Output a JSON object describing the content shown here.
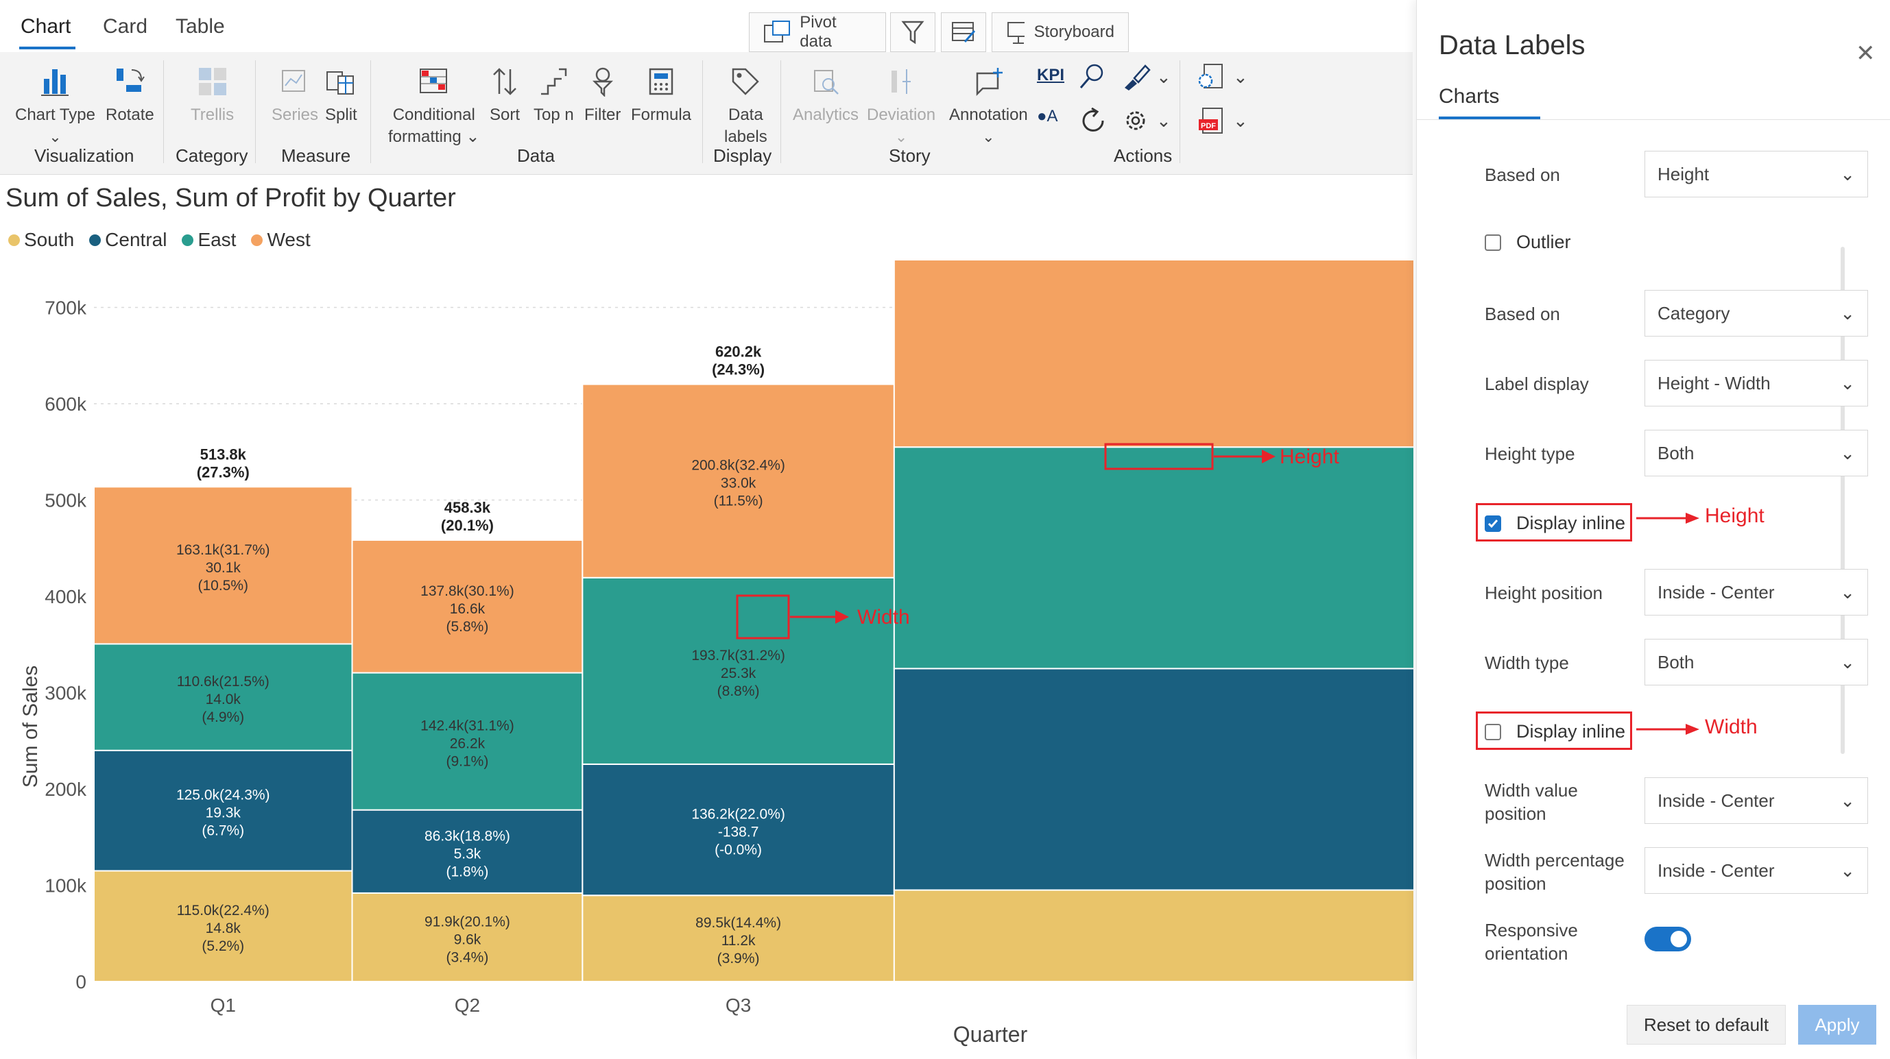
{
  "tabs": [
    {
      "label": "Chart"
    },
    {
      "label": "Card"
    },
    {
      "label": "Table"
    }
  ],
  "toolbar": {
    "pivot_label": "Pivot data",
    "storyboard_label": "Storyboard"
  },
  "ribbon": {
    "chart_type": "Chart Type",
    "rotate": "Rotate",
    "trellis": "Trellis",
    "series": "Series",
    "split": "Split",
    "conditional_formatting_1": "Conditional",
    "conditional_formatting_2": "formatting",
    "sort": "Sort",
    "top_n": "Top n",
    "filter": "Filter",
    "formula": "Formula",
    "data_labels_1": "Data",
    "data_labels_2": "labels",
    "analytics": "Analytics",
    "deviation": "Deviation",
    "annotation": "Annotation",
    "kpi": "KPI",
    "groups": {
      "visualization": "Visualization",
      "category": "Category",
      "measure": "Measure",
      "data": "Data",
      "display": "Display",
      "story": "Story",
      "actions": "Actions"
    }
  },
  "chart": {
    "title": "Sum of Sales, Sum of Profit by Quarter",
    "legend": [
      {
        "name": "South",
        "color": "#e9c46a"
      },
      {
        "name": "Central",
        "color": "#1a6080"
      },
      {
        "name": "East",
        "color": "#2a9d8f"
      },
      {
        "name": "West",
        "color": "#f4a261"
      }
    ],
    "annotations": {
      "height": "Height",
      "width": "Width"
    }
  },
  "chart_data": {
    "type": "bar",
    "title": "Sum of Sales, Sum of Profit by Quarter",
    "xlabel": "Quarter",
    "ylabel": "Sum of Sales",
    "ylim": [
      0,
      700000
    ],
    "yticks": [
      "0",
      "100k",
      "200k",
      "300k",
      "400k",
      "500k",
      "600k",
      "700k"
    ],
    "categories": [
      "Q1",
      "Q2",
      "Q3"
    ],
    "widths": [
      513.8,
      458.3,
      620.2
    ],
    "totals": [
      {
        "value": "513.8k",
        "pct": "(27.3%)"
      },
      {
        "value": "458.3k",
        "pct": "(20.1%)"
      },
      {
        "value": "620.2k",
        "pct": "(24.3%)"
      }
    ],
    "series": [
      {
        "name": "South",
        "color": "#e9c46a",
        "values": [
          115.0,
          91.9,
          89.5
        ],
        "labels": [
          [
            "115.0k(22.4%)",
            "14.8k",
            "(5.2%)"
          ],
          [
            "91.9k(20.1%)",
            "9.6k",
            "(3.4%)"
          ],
          [
            "89.5k(14.4%)",
            "11.2k",
            "(3.9%)"
          ]
        ]
      },
      {
        "name": "Central",
        "color": "#1a6080",
        "values": [
          125.0,
          86.3,
          136.2
        ],
        "labels": [
          [
            "125.0k(24.3%)",
            "19.3k",
            "(6.7%)"
          ],
          [
            "86.3k(18.8%)",
            "5.3k",
            "(1.8%)"
          ],
          [
            "136.2k(22.0%)",
            "-138.7",
            "(-0.0%)"
          ]
        ]
      },
      {
        "name": "East",
        "color": "#2a9d8f",
        "values": [
          110.6,
          142.4,
          193.7
        ],
        "labels": [
          [
            "110.6k(21.5%)",
            "14.0k",
            "(4.9%)"
          ],
          [
            "142.4k(31.1%)",
            "26.2k",
            "(9.1%)"
          ],
          [
            "193.7k(31.2%)",
            "25.3k",
            "(8.8%)"
          ]
        ]
      },
      {
        "name": "West",
        "color": "#f4a261",
        "values": [
          163.1,
          137.8,
          200.8
        ],
        "labels": [
          [
            "163.1k(31.7%)",
            "30.1k",
            "(10.5%)"
          ],
          [
            "137.8k(30.1%)",
            "16.6k",
            "(5.8%)"
          ],
          [
            "200.8k(32.4%)",
            "33.0k",
            "(11.5%)"
          ]
        ]
      }
    ],
    "partial_q4": {
      "values": [
        95,
        230,
        230,
        220
      ]
    }
  },
  "panel": {
    "title": "Data Labels",
    "tab": "Charts",
    "based_on_label": "Based on",
    "based_on_value": "Height",
    "outlier_label": "Outlier",
    "based_on2_label": "Based on",
    "based_on2_value": "Category",
    "label_display_label": "Label display",
    "label_display_value": "Height - Width",
    "height_type_label": "Height type",
    "height_type_value": "Both",
    "display_inline_1": "Display inline",
    "height_position_label": "Height position",
    "height_position_value": "Inside - Center",
    "width_type_label": "Width type",
    "width_type_value": "Both",
    "display_inline_2": "Display inline",
    "width_value_position_1": "Width value",
    "width_value_position_2": "position",
    "width_value_position_value": "Inside - Center",
    "width_pct_position_1": "Width percentage",
    "width_pct_position_2": "position",
    "width_pct_position_value": "Inside - Center",
    "responsive_1": "Responsive",
    "responsive_2": "orientation",
    "reset": "Reset to default",
    "apply": "Apply",
    "annot_height": "Height",
    "annot_width": "Width"
  }
}
